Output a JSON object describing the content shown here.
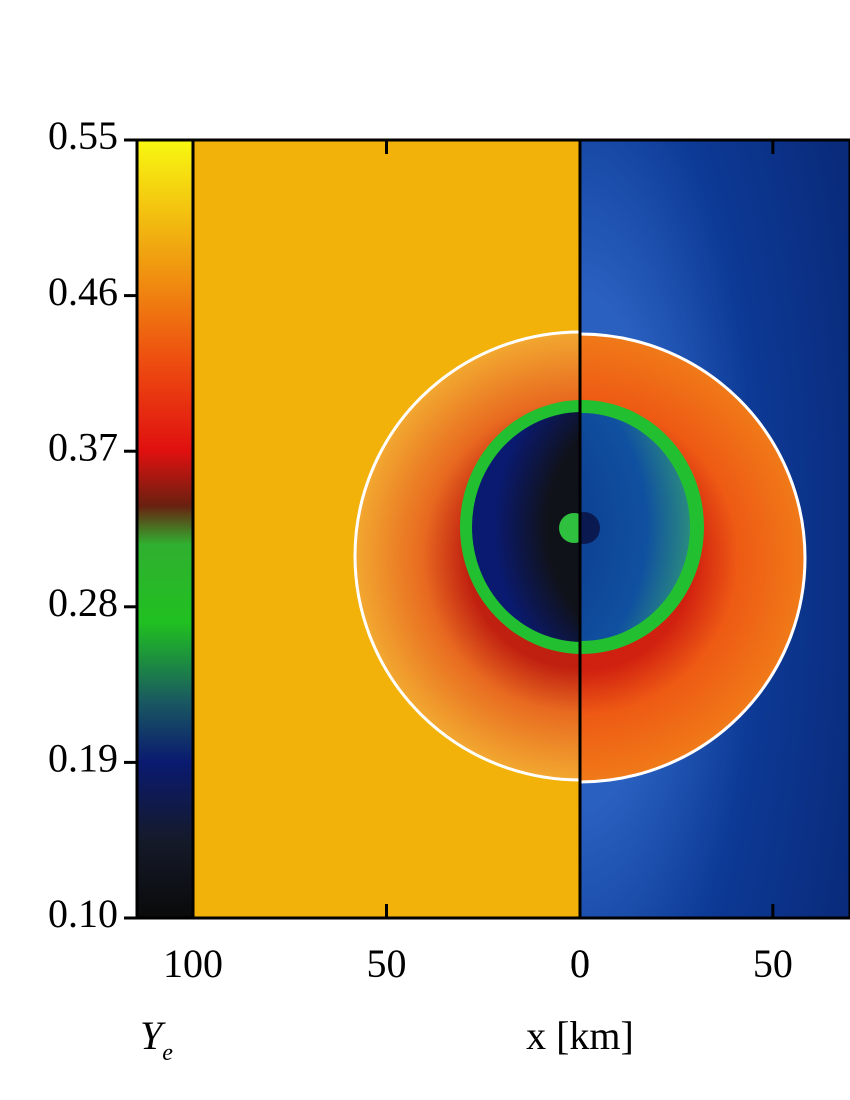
{
  "chart_data": {
    "type": "heatmap",
    "colorbar": {
      "ylim": [
        0.1,
        0.55
      ],
      "yticks": [
        {
          "value": 0.1,
          "label": "0.10"
        },
        0.19,
        0.28,
        0.37,
        0.46,
        0.55
      ],
      "label": {
        "symbol": "Y",
        "subscript": "e"
      }
    },
    "panels": [
      {
        "xlim": [
          100,
          0
        ],
        "xticks": [
          100,
          50,
          0
        ]
      },
      {
        "xlim": [
          0,
          70
        ],
        "xticks": [
          0,
          50
        ]
      }
    ],
    "xlabel": "x [km]"
  }
}
